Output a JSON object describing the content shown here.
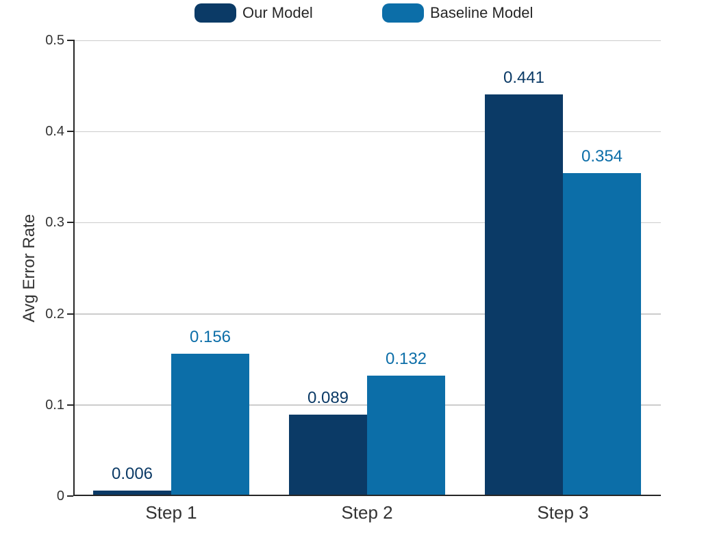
{
  "chart_data": {
    "type": "bar",
    "title": "",
    "categories": [
      "Step 1",
      "Step 2",
      "Step 3"
    ],
    "series": [
      {
        "name": "Our Model",
        "color": "#0b3a66",
        "values": [
          0.006,
          0.089,
          0.441
        ],
        "value_labels": [
          "0.006",
          "0.089",
          "0.441"
        ]
      },
      {
        "name": "Baseline Model",
        "color": "#0c6ea8",
        "values": [
          0.156,
          0.132,
          0.354
        ],
        "value_labels": [
          "0.156",
          "0.132",
          "0.354"
        ]
      }
    ],
    "xlabel": "",
    "ylabel": "Avg Error Rate",
    "ylim": [
      0,
      0.5
    ],
    "yticks": [
      0,
      0.1,
      0.2,
      0.3,
      0.4,
      0.5
    ],
    "ytick_labels": [
      "0",
      "0.1",
      "0.2",
      "0.3",
      "0.4",
      "0.5"
    ],
    "grid": "horizontal",
    "legend_position": "top-center",
    "value_labels_shown": true
  },
  "colors": {
    "background": "#ffffff",
    "axis_spine": "#262626",
    "gridline": "#cccccc",
    "tick_text": "#333333",
    "legend_text": "#262626"
  }
}
